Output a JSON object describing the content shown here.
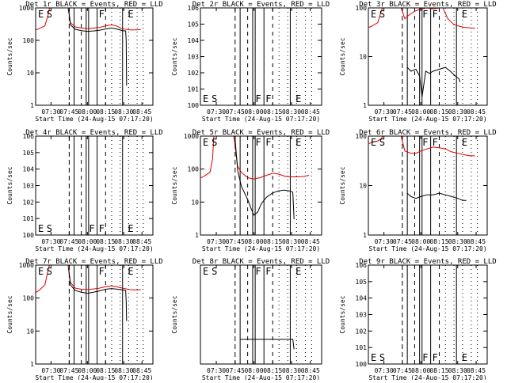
{
  "xticks": [
    "07:30",
    "07:45",
    "08:00",
    "08:15",
    "08:30",
    "08:45"
  ],
  "xtick_minutes": [
    30,
    45,
    60,
    75,
    90,
    105
  ],
  "xlabel": "Start Time (24-Aug-15 07:17:20)",
  "ylabel": "Counts/sec",
  "chart_data": [
    {
      "type": "line",
      "title": "Det 1r BLACK = Events, RED = LLD",
      "xlabel": "Start Time (24-Aug-15 07:17:20)",
      "ylabel": "Counts/sec",
      "xlim": [
        "07:17:20",
        "08:54:00"
      ],
      "ylim": [
        1,
        1000
      ],
      "yscale": "log",
      "yticks": [
        "1",
        "10",
        "100",
        "1000"
      ],
      "markers": [
        {
          "label": "E",
          "x": "07:18"
        },
        {
          "label": "S",
          "x": "07:25"
        },
        {
          "label": "F",
          "x": "08:08"
        },
        {
          "label": "E",
          "x": "08:32"
        }
      ],
      "series": [
        {
          "name": "LLD",
          "color": "#e00000",
          "values": [
            [
              17.8,
              210
            ],
            [
              20,
              230
            ],
            [
              25,
              280
            ],
            [
              27.5,
              600
            ],
            [
              29,
              1100
            ],
            [
              44,
              1050
            ],
            [
              46,
              350
            ],
            [
              50,
              260
            ],
            [
              55,
              240
            ],
            [
              60,
              230
            ],
            [
              65,
              240
            ],
            [
              70,
              250
            ],
            [
              75,
              280
            ],
            [
              80,
              300
            ],
            [
              85,
              270
            ],
            [
              88,
              230
            ],
            [
              95,
              210
            ],
            [
              100,
              210
            ],
            [
              104,
              215
            ]
          ]
        },
        {
          "name": "Events",
          "color": "#000000",
          "values": [
            [
              44.5,
              900
            ],
            [
              46,
              300
            ],
            [
              50,
              220
            ],
            [
              55,
              200
            ],
            [
              60,
              190
            ],
            [
              65,
              195
            ],
            [
              70,
              205
            ],
            [
              75,
              225
            ],
            [
              80,
              240
            ],
            [
              85,
              220
            ],
            [
              89,
              200
            ],
            [
              91.5,
              195
            ],
            [
              92,
              100
            ],
            [
              92.3,
              4
            ]
          ]
        }
      ]
    },
    {
      "type": "line",
      "title": "Det 2r BLACK = Events, RED = LLD",
      "xlabel": "Start Time (24-Aug-15 07:17:20)",
      "ylabel": "Counts/sec",
      "xlim": [
        "07:17:20",
        "08:54:00"
      ],
      "ylim": [
        1,
        1000000
      ],
      "yscale": "log",
      "yticks": [
        "10^0",
        "10^1",
        "10^2",
        "10^3",
        "10^4",
        "10^5",
        "10^6"
      ],
      "markers": [
        {
          "label": "E",
          "x": "07:18"
        },
        {
          "label": "S",
          "x": "07:25"
        },
        {
          "label": "F",
          "x": "08:00"
        },
        {
          "label": "F",
          "x": "08:08"
        },
        {
          "label": "E",
          "x": "08:32"
        }
      ],
      "series": []
    },
    {
      "type": "line",
      "title": "Det 3r BLACK = Events, RED = LLD",
      "xlabel": "Start Time (24-Aug-15 07:17:20)",
      "ylabel": "Counts/sec",
      "xlim": [
        "07:17:20",
        "08:54:00"
      ],
      "ylim": [
        1,
        100
      ],
      "yscale": "log",
      "yticks": [
        "1",
        "10",
        "100"
      ],
      "markers": [
        {
          "label": "E",
          "x": "07:18"
        },
        {
          "label": "S",
          "x": "07:25"
        },
        {
          "label": "F",
          "x": "08:00"
        },
        {
          "label": "F",
          "x": "08:08"
        },
        {
          "label": "E",
          "x": "08:32"
        }
      ],
      "series": [
        {
          "name": "LLD",
          "color": "#e00000",
          "values": [
            [
              17.8,
              40
            ],
            [
              20,
              42
            ],
            [
              25,
              50
            ],
            [
              28,
              90
            ],
            [
              29,
              100
            ],
            [
              44,
              100
            ],
            [
              47,
              60
            ],
            [
              50,
              70
            ],
            [
              55,
              85
            ],
            [
              60,
              95
            ],
            [
              65,
              100
            ],
            [
              70,
              95
            ],
            [
              75,
              100
            ],
            [
              78,
              100
            ],
            [
              82,
              60
            ],
            [
              87,
              45
            ],
            [
              95,
              40
            ],
            [
              104,
              38
            ]
          ]
        },
        {
          "name": "Events",
          "color": "#000000",
          "values": [
            [
              49,
              6
            ],
            [
              52,
              5
            ],
            [
              56,
              5.5
            ],
            [
              59,
              4
            ],
            [
              61,
              1.5
            ],
            [
              64,
              5
            ],
            [
              67,
              4.5
            ],
            [
              70,
              5
            ],
            [
              75,
              5.5
            ],
            [
              80,
              6
            ],
            [
              84,
              5
            ],
            [
              88,
              4
            ],
            [
              91,
              3.5
            ],
            [
              92,
              3
            ]
          ]
        }
      ]
    },
    {
      "type": "line",
      "title": "Det 4r BLACK = Events, RED = LLD",
      "xlabel": "Start Time (24-Aug-15 07:17:20)",
      "ylabel": "Counts/sec",
      "xlim": [
        "07:17:20",
        "08:54:00"
      ],
      "ylim": [
        1,
        1000000
      ],
      "yscale": "log",
      "yticks": [
        "10^0",
        "10^1",
        "10^2",
        "10^3",
        "10^4",
        "10^5",
        "10^6"
      ],
      "markers": [
        {
          "label": "E",
          "x": "07:18"
        },
        {
          "label": "S",
          "x": "07:25"
        },
        {
          "label": "F",
          "x": "08:00"
        },
        {
          "label": "F",
          "x": "08:08"
        },
        {
          "label": "E",
          "x": "08:32"
        }
      ],
      "series": []
    },
    {
      "type": "line",
      "title": "Det 5r BLACK = Events, RED = LLD",
      "xlabel": "Start Time (24-Aug-15 07:17:20)",
      "ylabel": "Counts/sec",
      "xlim": [
        "07:17:20",
        "08:54:00"
      ],
      "ylim": [
        1,
        1000
      ],
      "yscale": "log",
      "yticks": [
        "1",
        "10",
        "100",
        "1000"
      ],
      "markers": [
        {
          "label": "E",
          "x": "07:18"
        },
        {
          "label": "S",
          "x": "07:25"
        },
        {
          "label": "F",
          "x": "08:00"
        },
        {
          "label": "F",
          "x": "08:08"
        },
        {
          "label": "E",
          "x": "08:32"
        }
      ],
      "series": [
        {
          "name": "LLD",
          "color": "#e00000",
          "values": [
            [
              17.8,
              55
            ],
            [
              20,
              60
            ],
            [
              25,
              80
            ],
            [
              27,
              200
            ],
            [
              28,
              1000
            ],
            [
              44,
              1000
            ],
            [
              47,
              120
            ],
            [
              50,
              80
            ],
            [
              55,
              55
            ],
            [
              60,
              50
            ],
            [
              65,
              55
            ],
            [
              70,
              65
            ],
            [
              75,
              75
            ],
            [
              80,
              70
            ],
            [
              85,
              60
            ],
            [
              90,
              58
            ],
            [
              95,
              58
            ],
            [
              100,
              60
            ],
            [
              104,
              65
            ]
          ]
        },
        {
          "name": "Events",
          "color": "#000000",
          "values": [
            [
              45,
              800
            ],
            [
              47,
              90
            ],
            [
              50,
              30
            ],
            [
              55,
              12
            ],
            [
              58,
              6
            ],
            [
              60,
              4
            ],
            [
              63,
              5
            ],
            [
              66,
              9
            ],
            [
              70,
              14
            ],
            [
              75,
              19
            ],
            [
              80,
              22
            ],
            [
              84,
              23
            ],
            [
              88,
              22
            ],
            [
              91,
              20
            ],
            [
              92,
              3
            ]
          ]
        }
      ]
    },
    {
      "type": "line",
      "title": "Det 6r BLACK = Events, RED = LLD",
      "xlabel": "Start Time (24-Aug-15 07:17:20)",
      "ylabel": "Counts/sec",
      "xlim": [
        "07:17:20",
        "08:54:00"
      ],
      "ylim": [
        1,
        100
      ],
      "yscale": "log",
      "yticks": [
        "1",
        "10",
        "100"
      ],
      "markers": [
        {
          "label": "E",
          "x": "07:18"
        },
        {
          "label": "S",
          "x": "07:25"
        },
        {
          "label": "F",
          "x": "08:00"
        },
        {
          "label": "F",
          "x": "08:08"
        },
        {
          "label": "E",
          "x": "08:32"
        }
      ],
      "series": [
        {
          "name": "LLD",
          "color": "#e00000",
          "values": [
            [
              17.8,
              70
            ],
            [
              20,
              75
            ],
            [
              25,
              80
            ],
            [
              28,
              90
            ],
            [
              29,
              100
            ],
            [
              44,
              100
            ],
            [
              47,
              50
            ],
            [
              52,
              45
            ],
            [
              56,
              45
            ],
            [
              60,
              50
            ],
            [
              65,
              55
            ],
            [
              70,
              60
            ],
            [
              75,
              58
            ],
            [
              80,
              55
            ],
            [
              85,
              48
            ],
            [
              90,
              45
            ],
            [
              95,
              42
            ],
            [
              100,
              40
            ],
            [
              104,
              40
            ]
          ]
        },
        {
          "name": "Events",
          "color": "#000000",
          "values": [
            [
              49,
              7
            ],
            [
              52,
              6
            ],
            [
              56,
              5.5
            ],
            [
              60,
              6
            ],
            [
              65,
              6.5
            ],
            [
              70,
              6.5
            ],
            [
              75,
              7
            ],
            [
              80,
              6.5
            ],
            [
              85,
              6
            ],
            [
              90,
              5.5
            ],
            [
              94,
              5
            ],
            [
              97,
              5
            ]
          ]
        }
      ]
    },
    {
      "type": "line",
      "title": "Det 7r BLACK = Events, RED = LLD",
      "xlabel": "Start Time (24-Aug-15 07:17:20)",
      "ylabel": "Counts/sec",
      "xlim": [
        "07:17:20",
        "08:54:00"
      ],
      "ylim": [
        1,
        1000
      ],
      "yscale": "log",
      "yticks": [
        "1",
        "10",
        "100",
        "1000"
      ],
      "markers": [
        {
          "label": "E",
          "x": "07:18"
        },
        {
          "label": "S",
          "x": "07:25"
        },
        {
          "label": "F",
          "x": "08:08"
        },
        {
          "label": "E",
          "x": "08:32"
        }
      ],
      "series": [
        {
          "name": "LLD",
          "color": "#e00000",
          "values": [
            [
              17.8,
              150
            ],
            [
              20,
              170
            ],
            [
              25,
              250
            ],
            [
              27.5,
              700
            ],
            [
              29,
              1100
            ],
            [
              44,
              1050
            ],
            [
              46,
              300
            ],
            [
              50,
              200
            ],
            [
              55,
              185
            ],
            [
              60,
              180
            ],
            [
              65,
              190
            ],
            [
              70,
              200
            ],
            [
              75,
              220
            ],
            [
              80,
              235
            ],
            [
              85,
              215
            ],
            [
              89,
              200
            ],
            [
              95,
              180
            ],
            [
              100,
              175
            ],
            [
              104,
              180
            ]
          ]
        },
        {
          "name": "Events",
          "color": "#000000",
          "values": [
            [
              44.5,
              800
            ],
            [
              46,
              250
            ],
            [
              50,
              170
            ],
            [
              55,
              150
            ],
            [
              60,
              140
            ],
            [
              65,
              150
            ],
            [
              70,
              165
            ],
            [
              75,
              185
            ],
            [
              80,
              195
            ],
            [
              85,
              185
            ],
            [
              89,
              175
            ],
            [
              91.5,
              170
            ],
            [
              92,
              80
            ],
            [
              92.3,
              20
            ]
          ]
        }
      ]
    },
    {
      "type": "line",
      "title": "Det 8r BLACK = Events, RED = LLD",
      "xlabel": "Start Time (24-Aug-15 07:17:20)",
      "ylabel": "Counts/sec",
      "xlim": [
        "07:17:20",
        "08:54:00"
      ],
      "ylim": [
        0.8,
        1.6
      ],
      "yscale": "linear",
      "yticks": [],
      "markers": [
        {
          "label": "E",
          "x": "07:18"
        },
        {
          "label": "S",
          "x": "07:25"
        },
        {
          "label": "F",
          "x": "08:00"
        },
        {
          "label": "F",
          "x": "08:08"
        },
        {
          "label": "E",
          "x": "08:32"
        }
      ],
      "series": [
        {
          "name": "Events",
          "color": "#000000",
          "values": [
            [
              49,
              1.0
            ],
            [
              52,
              1.0
            ],
            [
              55,
              1.0
            ],
            [
              60,
              1.0
            ],
            [
              65,
              1.0
            ],
            [
              70,
              1.0
            ],
            [
              75,
              1.0
            ],
            [
              80,
              1.0
            ],
            [
              85,
              1.0
            ],
            [
              88,
              1.0
            ],
            [
              91,
              1.0
            ],
            [
              92,
              0.92
            ]
          ]
        }
      ]
    },
    {
      "type": "line",
      "title": "Det 9r BLACK = Events, RED = LLD",
      "xlabel": "Start Time (24-Aug-15 07:17:20)",
      "ylabel": "Counts/sec",
      "xlim": [
        "07:17:20",
        "08:54:00"
      ],
      "ylim": [
        1,
        1000000
      ],
      "yscale": "log",
      "yticks": [
        "10^0",
        "10^1",
        "10^2",
        "10^3",
        "10^4",
        "10^5",
        "10^6"
      ],
      "markers": [
        {
          "label": "E",
          "x": "07:18"
        },
        {
          "label": "S",
          "x": "07:25"
        },
        {
          "label": "F",
          "x": "08:00"
        },
        {
          "label": "F",
          "x": "08:08"
        },
        {
          "label": "E",
          "x": "08:32"
        }
      ],
      "series": []
    }
  ]
}
